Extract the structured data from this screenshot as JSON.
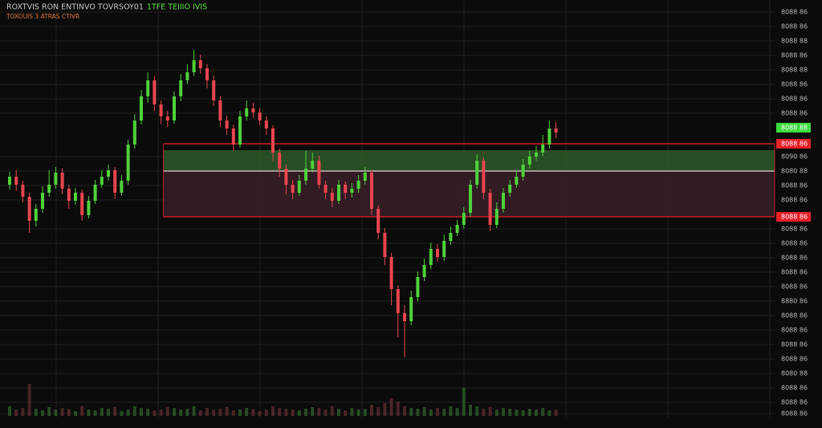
{
  "chart_data": {
    "type": "candlestick",
    "title": "ROXTVIS RON ENTINVO TOVRSOY01",
    "title_status": "1TFE TEIIIO IVIS",
    "subtitle": "TOXOUIS 3 ATRAS CTIVR",
    "up_color": "#4fd13a",
    "down_color": "#e8454f",
    "grid": true,
    "ylim": [
      15,
      530
    ],
    "yticks": [
      {
        "value": 515,
        "label": "8088 86"
      },
      {
        "value": 497,
        "label": "8088 86"
      },
      {
        "value": 479,
        "label": "8088 88"
      },
      {
        "value": 461,
        "label": "8088 86"
      },
      {
        "value": 443,
        "label": "8088 88"
      },
      {
        "value": 425,
        "label": "8088 86"
      },
      {
        "value": 407,
        "label": "8088 86"
      },
      {
        "value": 389,
        "label": "8088 86"
      },
      {
        "value": 335,
        "label": "8090 86"
      },
      {
        "value": 317,
        "label": "8080 88"
      },
      {
        "value": 299,
        "label": "8088 86"
      },
      {
        "value": 281,
        "label": "8088 86"
      },
      {
        "value": 245,
        "label": "8088 86"
      },
      {
        "value": 227,
        "label": "8088 86"
      },
      {
        "value": 209,
        "label": "8088 86"
      },
      {
        "value": 191,
        "label": "8088 86"
      },
      {
        "value": 173,
        "label": "8088 86"
      },
      {
        "value": 155,
        "label": "8880 86"
      },
      {
        "value": 137,
        "label": "8088 86"
      },
      {
        "value": 119,
        "label": "8088 86"
      },
      {
        "value": 101,
        "label": "8088 86"
      },
      {
        "value": 83,
        "label": "8088 86"
      },
      {
        "value": 65,
        "label": "8080 88"
      },
      {
        "value": 47,
        "label": "8088 86"
      },
      {
        "value": 29,
        "label": "8088 86"
      },
      {
        "value": 15,
        "label": "8088 86"
      }
    ],
    "price_tags": [
      {
        "value": 371,
        "label": "8088 88",
        "color": "#3ddc3d"
      },
      {
        "value": 351,
        "label": "8088 86",
        "color": "#e8202a"
      },
      {
        "value": 260,
        "label": "8088 86",
        "color": "#e8202a"
      }
    ],
    "zones": [
      {
        "x_start": 22,
        "low": 317,
        "high": 343,
        "color": "#2f5a2a"
      },
      {
        "x_start": 22,
        "low": 260,
        "high": 317,
        "color": "#3a1f28"
      }
    ],
    "levels": [
      {
        "x_start": 22,
        "value": 351,
        "color": "#e8202a"
      },
      {
        "x_start": 22,
        "value": 317,
        "color": "#e8d0d8"
      },
      {
        "x_start": 22,
        "value": 260,
        "color": "#e8202a"
      }
    ],
    "open": [
      300,
      310,
      300,
      285,
      255,
      270,
      290,
      300,
      315,
      295,
      280,
      290,
      262,
      280,
      300,
      310,
      318,
      290,
      305,
      350,
      380,
      410,
      430,
      400,
      385,
      380,
      410,
      430,
      440,
      455,
      445,
      430,
      405,
      380,
      370,
      350,
      385,
      395,
      390,
      380,
      370,
      340,
      320,
      300,
      290,
      305,
      320,
      330,
      300,
      290,
      280,
      300,
      290,
      295,
      305,
      315,
      270,
      240,
      210,
      170,
      140,
      130,
      160,
      185,
      200,
      220,
      210,
      230,
      240,
      250,
      265,
      300,
      330,
      290,
      250,
      270,
      290,
      300,
      310,
      325,
      335,
      340,
      350,
      370
    ],
    "high": [
      316,
      318,
      305,
      290,
      276,
      298,
      318,
      322,
      320,
      300,
      296,
      294,
      286,
      306,
      318,
      325,
      322,
      312,
      356,
      388,
      418,
      440,
      435,
      405,
      392,
      416,
      438,
      450,
      468,
      462,
      450,
      436,
      410,
      386,
      375,
      392,
      405,
      402,
      396,
      385,
      374,
      345,
      325,
      306,
      312,
      342,
      340,
      336,
      305,
      296,
      306,
      304,
      302,
      312,
      322,
      318,
      274,
      246,
      215,
      175,
      150,
      168,
      192,
      208,
      228,
      226,
      238,
      248,
      256,
      272,
      306,
      338,
      334,
      295,
      278,
      296,
      306,
      318,
      332,
      342,
      348,
      362,
      380,
      378
    ],
    "low": [
      294,
      292,
      278,
      240,
      248,
      265,
      285,
      295,
      288,
      270,
      275,
      255,
      258,
      276,
      296,
      305,
      282,
      286,
      300,
      345,
      375,
      402,
      392,
      375,
      372,
      376,
      404,
      425,
      435,
      438,
      420,
      398,
      372,
      362,
      342,
      346,
      380,
      383,
      374,
      362,
      330,
      310,
      288,
      282,
      286,
      300,
      315,
      295,
      282,
      272,
      276,
      282,
      284,
      290,
      300,
      262,
      232,
      200,
      150,
      110,
      85,
      125,
      155,
      180,
      195,
      204,
      205,
      225,
      236,
      245,
      260,
      295,
      282,
      242,
      246,
      265,
      285,
      296,
      305,
      320,
      330,
      336,
      345,
      358
    ],
    "close": [
      310,
      300,
      285,
      255,
      270,
      290,
      300,
      315,
      295,
      280,
      290,
      262,
      280,
      300,
      310,
      318,
      290,
      305,
      350,
      380,
      410,
      430,
      400,
      385,
      380,
      410,
      430,
      440,
      455,
      445,
      430,
      405,
      380,
      370,
      350,
      385,
      395,
      390,
      380,
      370,
      340,
      320,
      300,
      290,
      305,
      320,
      330,
      300,
      290,
      280,
      300,
      290,
      295,
      305,
      315,
      270,
      240,
      210,
      170,
      140,
      130,
      160,
      185,
      200,
      220,
      210,
      230,
      240,
      250,
      265,
      300,
      330,
      290,
      250,
      270,
      290,
      300,
      310,
      325,
      335,
      340,
      350,
      370,
      365
    ],
    "volume_lim": [
      0,
      60
    ],
    "volume": [
      12,
      8,
      10,
      40,
      9,
      7,
      11,
      8,
      10,
      9,
      6,
      12,
      8,
      7,
      10,
      9,
      11,
      6,
      8,
      12,
      10,
      9,
      7,
      8,
      11,
      10,
      8,
      9,
      12,
      7,
      10,
      8,
      9,
      11,
      7,
      8,
      10,
      9,
      6,
      8,
      12,
      10,
      9,
      8,
      7,
      9,
      11,
      10,
      8,
      12,
      9,
      7,
      10,
      8,
      9,
      14,
      11,
      16,
      22,
      18,
      12,
      10,
      9,
      11,
      8,
      10,
      9,
      12,
      10,
      35,
      14,
      12,
      9,
      11,
      8,
      10,
      9,
      8,
      7,
      9,
      8,
      10,
      7,
      8
    ]
  }
}
